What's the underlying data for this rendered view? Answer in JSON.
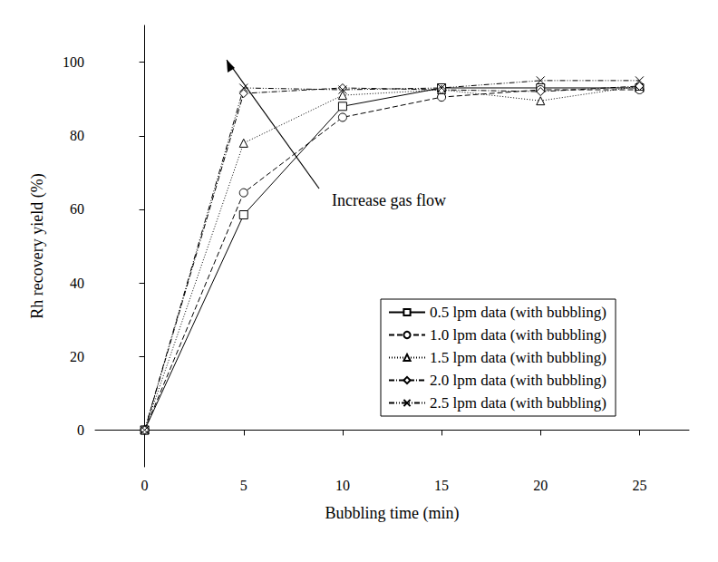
{
  "chart_data": {
    "type": "line",
    "x_label": "Bubbling time (min)",
    "y_label": "Rh recovery yield (%)",
    "annotation": "Increase gas flow",
    "x": [
      0,
      5,
      10,
      15,
      20,
      25
    ],
    "xlim": [
      -2.5,
      27.5
    ],
    "xticks": [
      0,
      5,
      10,
      15,
      20,
      25
    ],
    "ylim": [
      -10,
      110
    ],
    "yticks": [
      0,
      20,
      40,
      60,
      80,
      100
    ],
    "grid": false,
    "legend": "lower right",
    "series": [
      {
        "name": "0.5 lpm data (with bubbling)",
        "color": "#000000",
        "marker": "square",
        "line_style": "solid",
        "values": [
          0,
          58.5,
          88,
          93,
          93,
          93
        ]
      },
      {
        "name": "1.0 lpm data (with bubbling)",
        "color": "#000000",
        "marker": "circle",
        "line_style": "dashed",
        "values": [
          0,
          64.5,
          85,
          90.5,
          92.5,
          92.5
        ]
      },
      {
        "name": "1.5 lpm data (with bubbling)",
        "color": "#000000",
        "marker": "triangle",
        "line_style": "dotted",
        "values": [
          0,
          78,
          91,
          92.5,
          89.5,
          93.5
        ]
      },
      {
        "name": "2.0 lpm data (with bubbling)",
        "color": "#000000",
        "marker": "diamond",
        "line_style": "dashdot",
        "values": [
          0,
          91.5,
          93,
          92.5,
          92,
          93.5
        ]
      },
      {
        "name": "2.5 lpm data (with bubbling)",
        "color": "#000000",
        "marker": "x",
        "line_style": "dashdotdot",
        "values": [
          0,
          93,
          92.5,
          93,
          95,
          95
        ]
      }
    ]
  }
}
